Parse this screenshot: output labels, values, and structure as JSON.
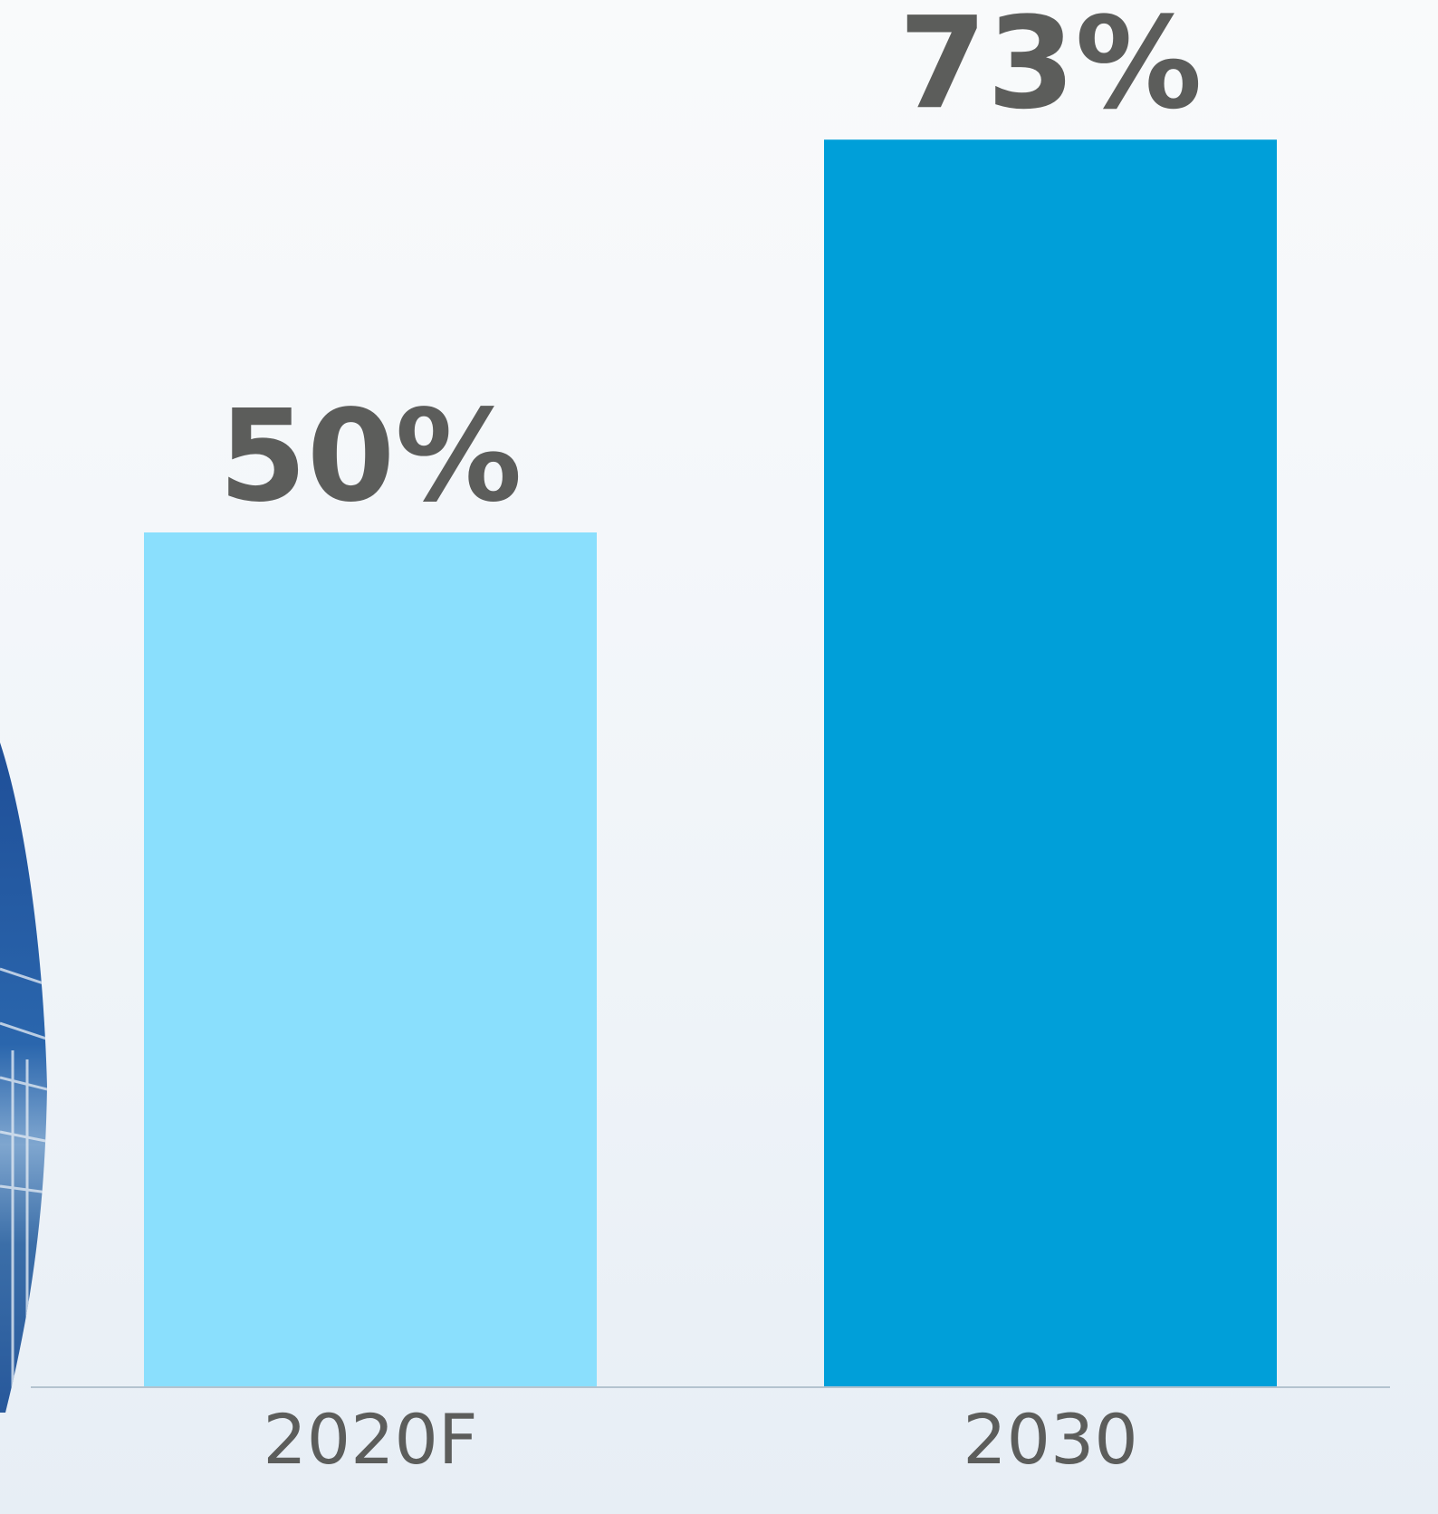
{
  "chart_data": {
    "type": "bar",
    "categories": [
      "2020F",
      "2030"
    ],
    "values": [
      50,
      73
    ],
    "value_labels": [
      "50%",
      "73%"
    ],
    "colors": [
      "#8adffd",
      "#009fd9"
    ],
    "title": "",
    "xlabel": "",
    "ylabel": "",
    "ylim": [
      0,
      100
    ],
    "grid": false,
    "legend": "none"
  },
  "decoration": {
    "left_image_icon": "blue-circular-photo-icon"
  }
}
